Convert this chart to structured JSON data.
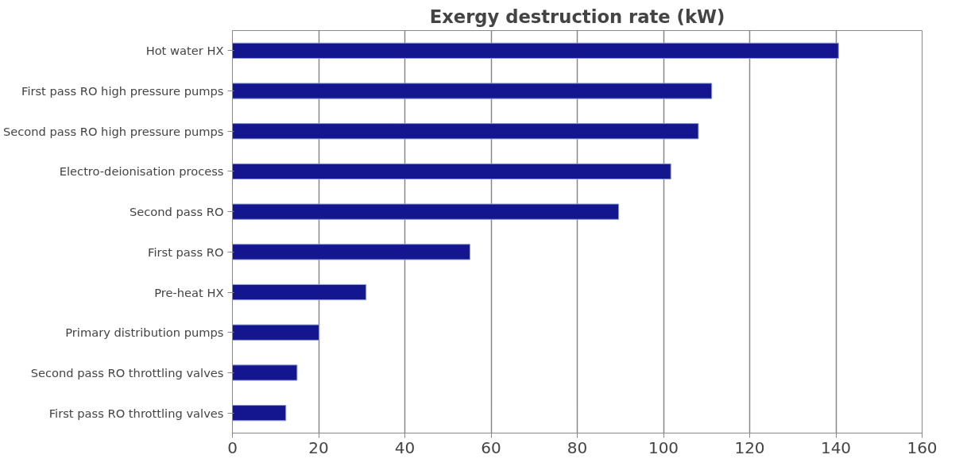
{
  "chart_data": {
    "type": "bar",
    "orientation": "horizontal",
    "title": "Exergy destruction rate (kW)",
    "categories": [
      "Hot water HX",
      "First pass RO high pressure pumps",
      "Second pass RO high pressure pumps",
      "Electro-deionisation process",
      "Second pass RO",
      "First pass RO",
      "Pre-heat HX",
      "Primary distribution pumps",
      "Second pass RO throttling valves",
      "First pass RO throttling valves"
    ],
    "values": [
      140.6,
      111.2,
      108.1,
      101.7,
      89.6,
      55.1,
      31.0,
      20.1,
      15.0,
      12.4
    ],
    "color": "#14168f",
    "xlim": [
      0,
      160
    ],
    "xticks": [
      0,
      20,
      40,
      60,
      80,
      100,
      120,
      140,
      160
    ],
    "grid": "x"
  }
}
